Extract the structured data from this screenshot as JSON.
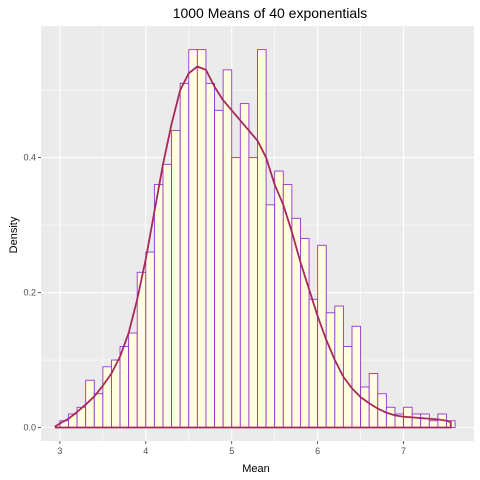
{
  "chart_data": {
    "type": "bar",
    "title": "1000 Means of 40 exponentials",
    "xlabel": "Mean",
    "ylabel": "Density",
    "xlim": [
      2.78,
      7.82
    ],
    "ylim": [
      -0.02,
      0.595
    ],
    "x_ticks": [
      3,
      4,
      5,
      6,
      7
    ],
    "y_ticks": [
      0.0,
      0.2,
      0.4
    ],
    "y_tick_labels": [
      "0.0",
      "0.2",
      "0.4"
    ],
    "grid": true,
    "bin_width": 0.1,
    "histogram": {
      "bin_starts": [
        3.0,
        3.1,
        3.2,
        3.3,
        3.4,
        3.5,
        3.6,
        3.7,
        3.8,
        3.9,
        4.0,
        4.1,
        4.2,
        4.3,
        4.4,
        4.5,
        4.6,
        4.7,
        4.8,
        4.9,
        5.0,
        5.1,
        5.2,
        5.3,
        5.4,
        5.5,
        5.6,
        5.7,
        5.8,
        5.9,
        6.0,
        6.1,
        6.2,
        6.3,
        6.4,
        6.5,
        6.6,
        6.7,
        6.8,
        6.9,
        7.0,
        7.1,
        7.2,
        7.3,
        7.4,
        7.5
      ],
      "density": [
        0.01,
        0.02,
        0.03,
        0.07,
        0.05,
        0.09,
        0.1,
        0.12,
        0.14,
        0.23,
        0.26,
        0.36,
        0.39,
        0.44,
        0.51,
        0.56,
        0.56,
        0.51,
        0.47,
        0.53,
        0.4,
        0.48,
        0.4,
        0.56,
        0.33,
        0.38,
        0.36,
        0.31,
        0.28,
        0.19,
        0.27,
        0.17,
        0.18,
        0.12,
        0.15,
        0.06,
        0.08,
        0.05,
        0.03,
        0.02,
        0.03,
        0.02,
        0.02,
        0.01,
        0.02,
        0.01
      ]
    },
    "density_curve": {
      "x": [
        2.95,
        3.0,
        3.1,
        3.2,
        3.3,
        3.4,
        3.5,
        3.6,
        3.7,
        3.8,
        3.9,
        4.0,
        4.1,
        4.2,
        4.3,
        4.4,
        4.5,
        4.6,
        4.7,
        4.8,
        4.9,
        5.0,
        5.1,
        5.2,
        5.3,
        5.4,
        5.5,
        5.6,
        5.7,
        5.8,
        5.9,
        6.0,
        6.1,
        6.2,
        6.3,
        6.4,
        6.5,
        6.6,
        6.7,
        6.8,
        6.9,
        7.0,
        7.1,
        7.2,
        7.3,
        7.4,
        7.5,
        7.55
      ],
      "y": [
        0.002,
        0.006,
        0.013,
        0.023,
        0.034,
        0.046,
        0.062,
        0.08,
        0.105,
        0.14,
        0.19,
        0.25,
        0.32,
        0.39,
        0.45,
        0.5,
        0.525,
        0.535,
        0.53,
        0.505,
        0.485,
        0.47,
        0.455,
        0.44,
        0.425,
        0.4,
        0.36,
        0.33,
        0.29,
        0.245,
        0.205,
        0.165,
        0.13,
        0.1,
        0.075,
        0.058,
        0.045,
        0.036,
        0.028,
        0.022,
        0.018,
        0.016,
        0.015,
        0.014,
        0.013,
        0.012,
        0.01,
        0.008
      ]
    },
    "bar_fill": "#FFFFE0",
    "bar_stroke": "#9932CC",
    "curve_color": "#A52A5A",
    "panel_background": "#EBEBEB",
    "grid_color": "#FFFFFF"
  }
}
